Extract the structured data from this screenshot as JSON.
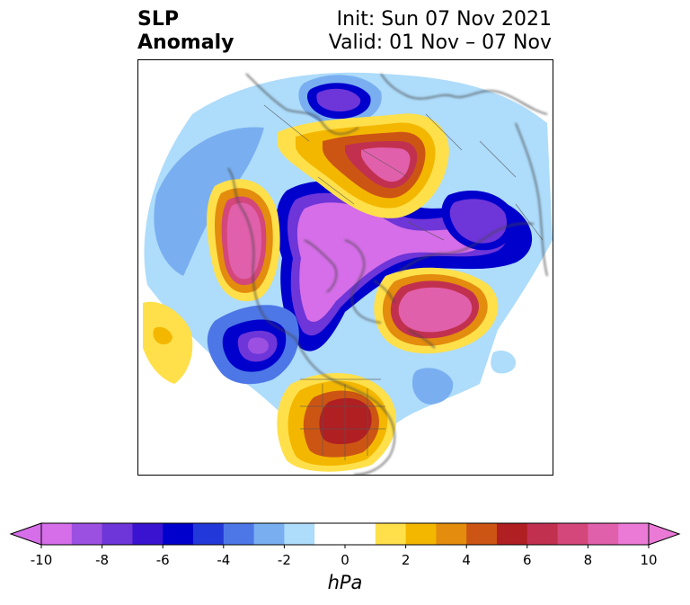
{
  "title": {
    "left_line1": "SLP",
    "left_line2": "Anomaly",
    "right_line1": "Init: Sun 07 Nov 2021",
    "right_line2": "Valid: 01 Nov – 07 Nov"
  },
  "map": {
    "type": "filled-contour anomaly map",
    "projection": "north polar stereographic",
    "features": [
      {
        "kind": "low",
        "region": "Alaska / Bering Sea / Arctic",
        "min_hPa": -10
      },
      {
        "kind": "low",
        "region": "Northern Europe / Scandinavia",
        "min_hPa": -10
      },
      {
        "kind": "low",
        "region": "Northeast Pacific",
        "min_hPa": -10
      },
      {
        "kind": "low",
        "region": "Northeast Atlantic",
        "min_hPa": -8
      },
      {
        "kind": "high",
        "region": "Northern Siberia",
        "max_hPa": 10
      },
      {
        "kind": "high",
        "region": "Northwest Pacific",
        "max_hPa": 10
      },
      {
        "kind": "high",
        "region": "Greenland / North Atlantic",
        "max_hPa": 10
      },
      {
        "kind": "high",
        "region": "Central United States",
        "max_hPa": 6
      }
    ]
  },
  "colorbar": {
    "unit": "hPa",
    "ticks": [
      "-10",
      "-8",
      "-6",
      "-4",
      "-2",
      "0",
      "2",
      "4",
      "6",
      "8",
      "10"
    ],
    "colors": [
      "#d56ee8",
      "#9b50e2",
      "#6e35d8",
      "#3a13d1",
      "#0000cc",
      "#2338d8",
      "#4d77e6",
      "#79aff0",
      "#aedcfb",
      "#ffffff",
      "#ffffff",
      "#ffe04a",
      "#f4b700",
      "#e38c0d",
      "#cc5514",
      "#b01f22",
      "#c23050",
      "#d4477a",
      "#e160ab",
      "#ea7ad6"
    ],
    "extend": "both"
  }
}
